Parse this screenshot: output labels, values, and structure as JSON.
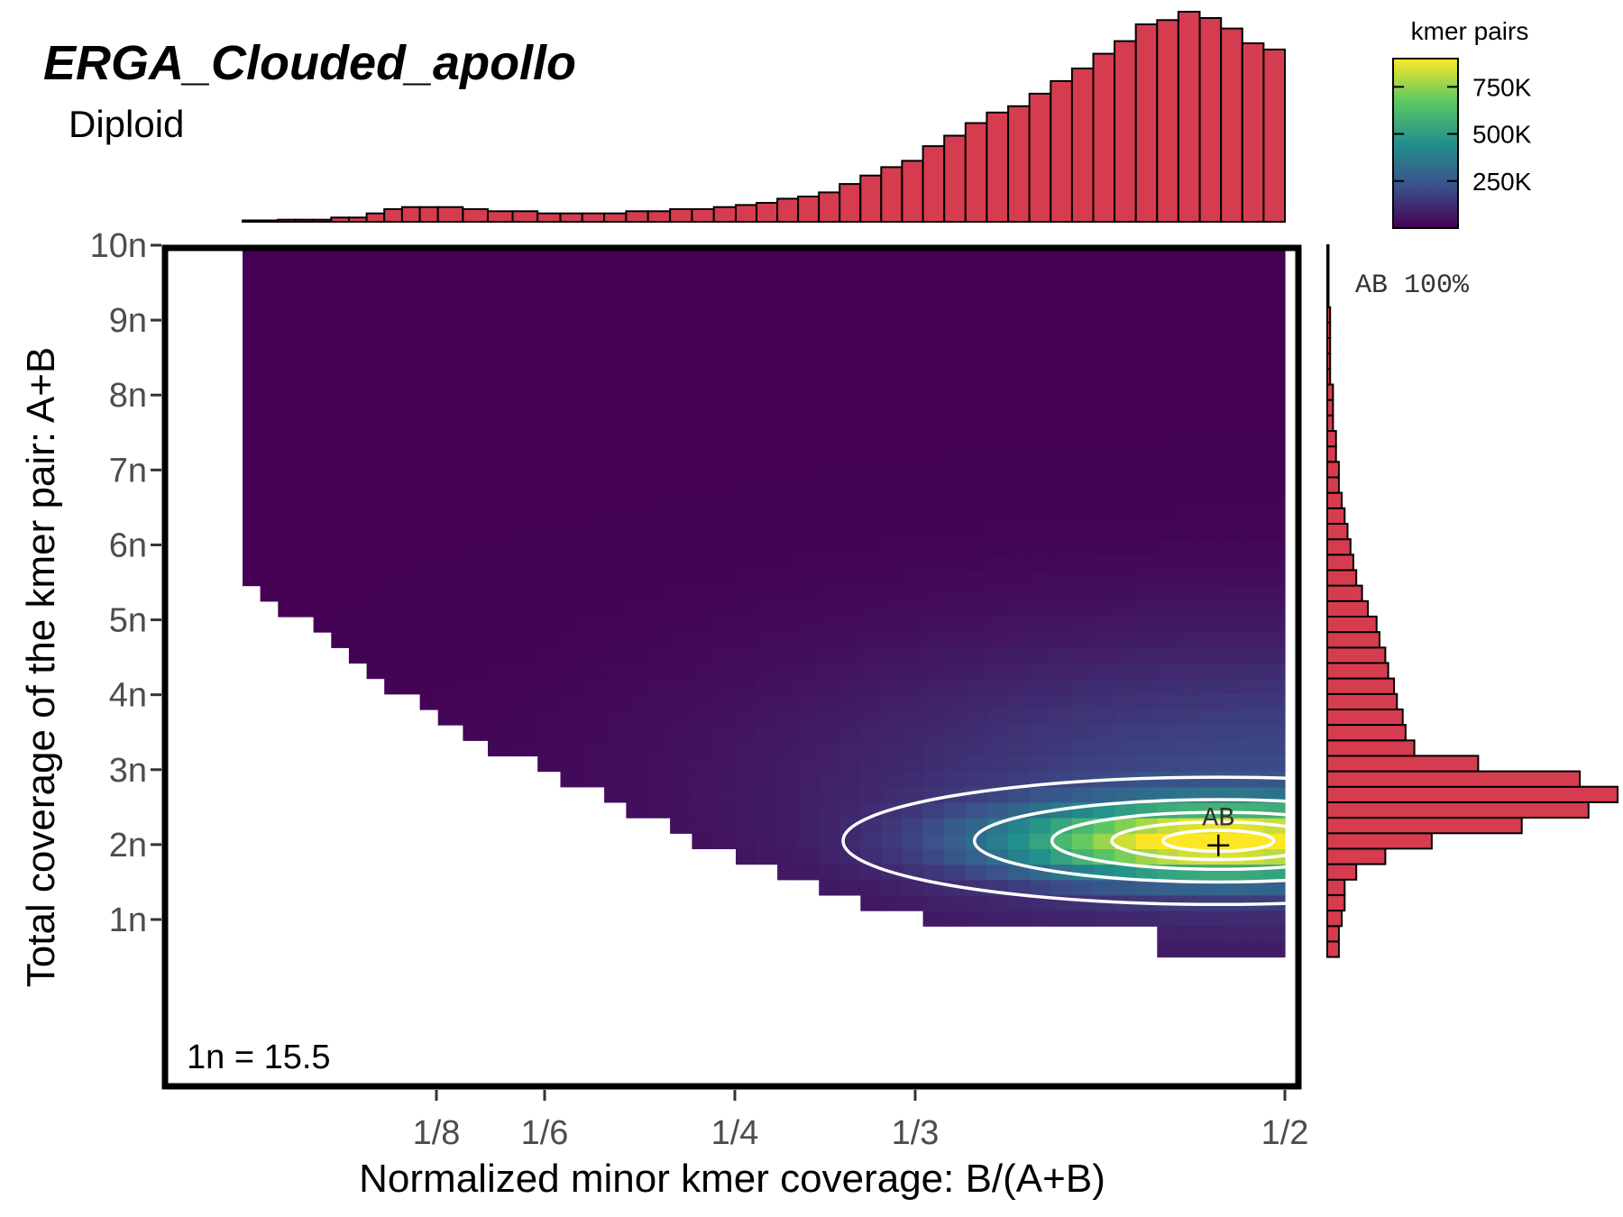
{
  "chart_data": {
    "type": "heatmap",
    "title": "ERGA_Clouded_apollo",
    "subtitle": "Diploid",
    "xlabel": "Normalized minor kmer coverage: B/(A+B)",
    "ylabel": "Total coverage of the kmer pair: A+B",
    "x_ticks": [
      "1/8",
      "1/6",
      "1/4",
      "1/3",
      "1/2"
    ],
    "x_tick_values": [
      0.125,
      0.1667,
      0.25,
      0.3333,
      0.5
    ],
    "xlim": [
      0.0,
      0.5
    ],
    "y_ticks": [
      "1n",
      "2n",
      "3n",
      "4n",
      "5n",
      "6n",
      "7n",
      "8n",
      "9n",
      "10n"
    ],
    "y_tick_values": [
      1,
      2,
      3,
      4,
      5,
      6,
      7,
      8,
      9,
      10
    ],
    "ylim": [
      0,
      10
    ],
    "legend": {
      "title": "kmer pairs",
      "labels": [
        "750K",
        "500K",
        "250K"
      ],
      "values": [
        750000,
        500000,
        250000
      ],
      "max": 900000,
      "placement": "top-right",
      "colors": [
        "#440154",
        "#3b528b",
        "#21908d",
        "#5dc963",
        "#fde725"
      ]
    },
    "peak": {
      "label": "AB",
      "x": 0.47,
      "y": 2.05,
      "value": 900000
    },
    "annotation": "1n = 15.5",
    "smudge_summary": [
      {
        "label": "AB",
        "percent": "100%"
      }
    ],
    "top_marginal": {
      "bins_min_x": 0.02,
      "bins_max_x": 0.5,
      "relative_heights": [
        0.0,
        0.0,
        0.01,
        0.01,
        0.01,
        0.02,
        0.02,
        0.04,
        0.06,
        0.07,
        0.07,
        0.07,
        0.06,
        0.05,
        0.05,
        0.04,
        0.04,
        0.04,
        0.04,
        0.05,
        0.05,
        0.06,
        0.06,
        0.07,
        0.08,
        0.09,
        0.11,
        0.12,
        0.14,
        0.18,
        0.22,
        0.26,
        0.29,
        0.36,
        0.41,
        0.47,
        0.52,
        0.55,
        0.61,
        0.67,
        0.73,
        0.8,
        0.86,
        0.94,
        0.96,
        1.0,
        0.97,
        0.92,
        0.85,
        0.82
      ]
    },
    "right_marginal": {
      "bins_min_y": 0.5,
      "bins_max_y": 10,
      "relative_widths": [
        0.04,
        0.04,
        0.05,
        0.06,
        0.06,
        0.1,
        0.2,
        0.36,
        0.67,
        0.9,
        1.0,
        0.87,
        0.52,
        0.3,
        0.27,
        0.26,
        0.24,
        0.23,
        0.21,
        0.2,
        0.18,
        0.17,
        0.14,
        0.12,
        0.1,
        0.09,
        0.08,
        0.07,
        0.06,
        0.05,
        0.04,
        0.04,
        0.03,
        0.03,
        0.02,
        0.02,
        0.02,
        0.01,
        0.01,
        0.01,
        0.01,
        0.01,
        0.0,
        0.0,
        0.0,
        0.0
      ]
    }
  }
}
